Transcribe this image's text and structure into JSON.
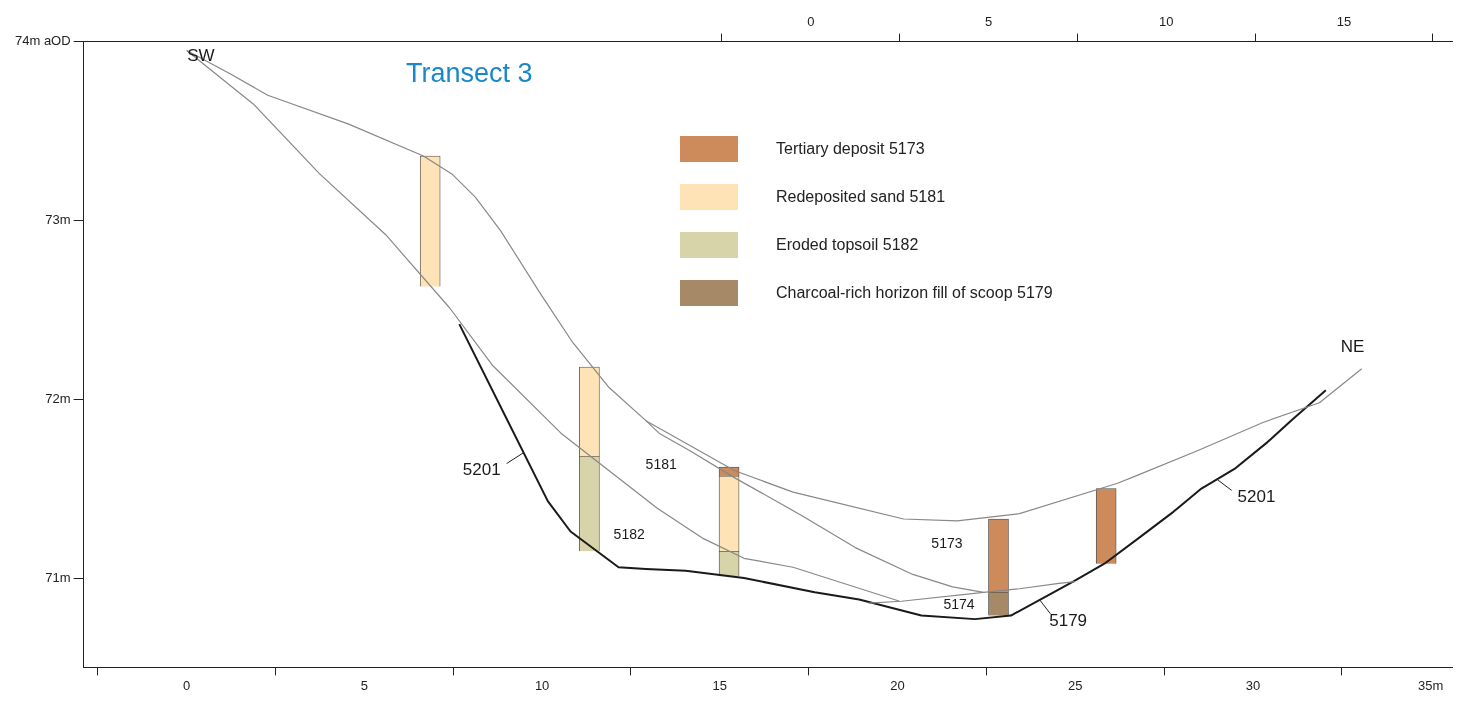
{
  "chart_data": {
    "type": "line",
    "title": "Transect 3",
    "xlim": [
      -2.9,
      35.6
    ],
    "xticks": [
      0,
      5,
      10,
      15,
      20,
      25,
      30,
      {
        "value": 35,
        "label": "35m"
      }
    ],
    "ylim": [
      70.5,
      74
    ],
    "yticks": [
      {
        "value": 71,
        "label": "71m"
      },
      {
        "value": 72,
        "label": "72m"
      },
      {
        "value": 73,
        "label": "73m"
      },
      {
        "value": 74,
        "label": "74m aOD"
      }
    ],
    "x2lim": [
      -20.46,
      18.04
    ],
    "x2ticks": [
      0,
      5,
      10,
      15
    ],
    "grid": false,
    "legend": "top",
    "marker": "none",
    "series": [
      {
        "color": "#888888",
        "x": [
          0,
          1.22,
          2.28,
          4.54,
          6.66,
          7.46,
          8.12,
          8.84,
          9.92,
          10.85,
          11.86,
          12.92,
          15.42,
          17.06,
          20.17,
          21.68,
          23.43,
          26.19,
          26.69,
          28.42,
          30.28,
          31.87,
          33.06
        ],
        "values": [
          73.95,
          73.82,
          73.7,
          73.54,
          73.36,
          73.26,
          73.13,
          72.94,
          72.6,
          72.32,
          72.07,
          71.88,
          71.6,
          71.48,
          71.33,
          71.32,
          71.36,
          71.53,
          71.57,
          71.71,
          71.87,
          71.98,
          72.17
        ]
      },
      {
        "color": "#888888",
        "x": [
          12.92,
          13.29,
          14.17,
          15.42,
          17.3,
          18.81,
          20.43,
          21.55,
          22.42,
          23.43,
          24.54,
          25.0
        ],
        "values": [
          71.88,
          71.81,
          71.71,
          71.56,
          71.35,
          71.17,
          71.02,
          70.95,
          70.92,
          70.94,
          70.97,
          70.98
        ]
      },
      {
        "color": "#888888",
        "x": [
          19.18,
          20.11,
          22.42
        ],
        "values": [
          70.86,
          70.87,
          70.92
        ]
      },
      {
        "color": "#888888",
        "x": [
          0,
          1.88,
          3.74,
          5.6,
          7.4,
          8.6,
          10.53,
          13.24,
          14.54,
          15.68,
          17.06,
          20.06
        ],
        "values": [
          73.95,
          73.65,
          73.26,
          72.92,
          72.51,
          72.19,
          71.81,
          71.39,
          71.22,
          71.11,
          71.06,
          70.87
        ]
      },
      {
        "color": "#1a1a1a",
        "x": [
          7.67,
          10.16,
          10.8,
          12.15,
          12.92,
          14.04,
          15.68,
          17.67,
          18.92,
          20.67,
          22.18,
          23.19,
          24.94,
          25.82,
          26.83,
          27.76,
          28.55,
          29.48,
          30.41,
          31.07,
          32.05
        ],
        "values": [
          72.42,
          71.43,
          71.26,
          71.06,
          71.05,
          71.04,
          71.0,
          70.92,
          70.88,
          70.79,
          70.77,
          70.79,
          70.98,
          71.08,
          71.23,
          71.37,
          71.5,
          71.61,
          71.76,
          71.88,
          72.05
        ]
      },
      {
        "type": "bar",
        "name": "Tertiary deposit 5173",
        "color": "#cd8a5a",
        "x": [
          15.26,
          22.84,
          25.87
        ],
        "base": [
          71.57,
          70.92,
          71.08
        ],
        "values": [
          0.05,
          0.41,
          0.42
        ]
      },
      {
        "type": "bar",
        "name": "Redeposited sand 5181",
        "color": "#fde3b6",
        "x": [
          6.85,
          11.33,
          15.26
        ],
        "base": [
          72.63,
          71.68,
          71.15
        ],
        "values": [
          0.73,
          0.5,
          0.42
        ]
      },
      {
        "type": "bar",
        "name": "Eroded topsoil 5182",
        "color": "#d8d4aa",
        "x": [
          11.33,
          15.26
        ],
        "base": [
          71.15,
          71.01
        ],
        "values": [
          0.53,
          0.14
        ]
      },
      {
        "type": "bar",
        "name": "Charcoal-rich horizon fill of scoop 5179",
        "color": "#a68a68",
        "x": [
          22.84
        ],
        "base": [
          70.79
        ],
        "values": [
          0.13
        ]
      }
    ],
    "annotations": [
      "SW",
      "NE",
      "5201",
      "5181",
      "5182",
      "5173",
      "5174",
      "5179",
      "5201"
    ]
  }
}
